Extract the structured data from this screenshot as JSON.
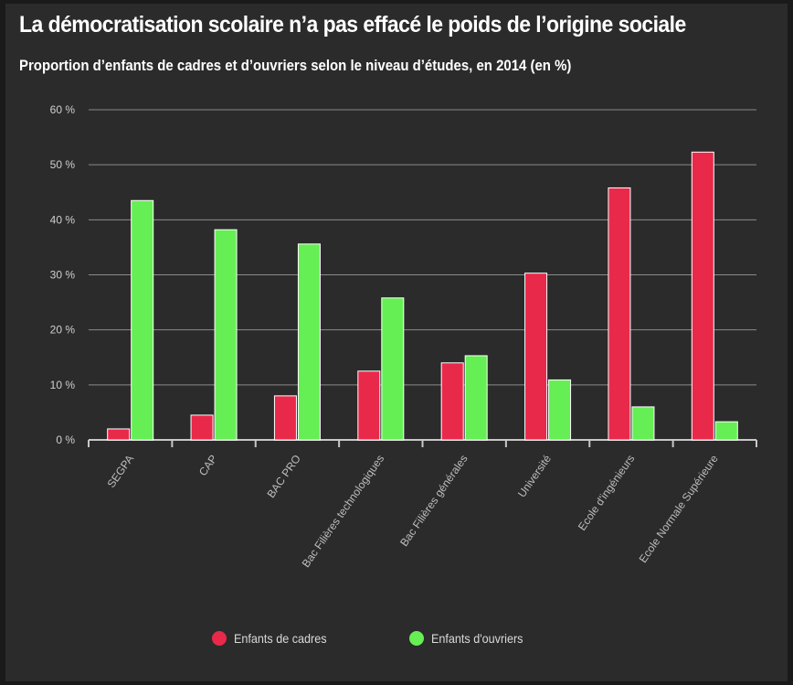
{
  "title": "La démocratisation scolaire n’a pas effacé le poids de l’origine sociale",
  "subtitle": "Proportion d’enfants de cadres et d’ouvriers selon le niveau d’études, en 2014 (en %)",
  "colors": {
    "background": "#2b2b2b",
    "cadres": "#e8294a",
    "ouvriers": "#66ee55",
    "grid": "#8a8a8a",
    "text": "#cfcfcf"
  },
  "chart_data": {
    "type": "bar",
    "title": "La démocratisation scolaire n’a pas effacé le poids de l’origine sociale",
    "subtitle": "Proportion d’enfants de cadres et d’ouvriers selon le niveau d’études, en 2014 (en %)",
    "categories": [
      "SEGPA",
      "CAP",
      "BAC PRO",
      "Bac Filières technologiques",
      "Bac Filières générales",
      "Université",
      "Ecole d'ingénieurs",
      "Ecole Normale Supérieure"
    ],
    "series": [
      {
        "name": "Enfants de cadres",
        "color": "#e8294a",
        "values": [
          2,
          4.5,
          8,
          12.5,
          14,
          30.3,
          45.8,
          52.3
        ]
      },
      {
        "name": "Enfants d'ouvriers",
        "color": "#66ee55",
        "values": [
          43.5,
          38.2,
          35.6,
          25.8,
          15.3,
          10.9,
          6,
          3.3
        ]
      }
    ],
    "ylim": [
      0,
      60
    ],
    "yticks": [
      "0 %",
      "10 %",
      "20 %",
      "30 %",
      "40 %",
      "50 %",
      "60 %"
    ],
    "ytick_values": [
      0,
      10,
      20,
      30,
      40,
      50,
      60
    ],
    "xlabel": "",
    "ylabel": "",
    "grid": true,
    "legend": "bottom"
  }
}
